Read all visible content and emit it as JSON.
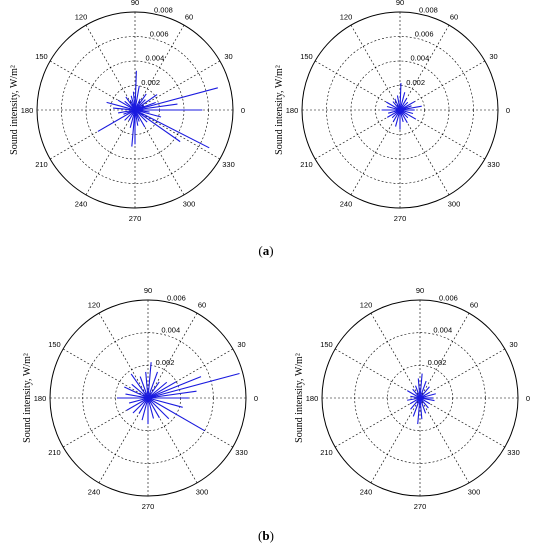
{
  "figure": {
    "captions": [
      "a",
      "b"
    ]
  },
  "chart_data": [
    {
      "type": "polar",
      "panel": "a",
      "position": "left",
      "ylabel": "Sound intensity, W/m²",
      "r_ticks": [
        "0.002",
        "0.004",
        "0.006",
        "0.008"
      ],
      "rlim": [
        0,
        0.008
      ],
      "angle_ticks": [
        "0",
        "30",
        "60",
        "90",
        "120",
        "150",
        "180",
        "210",
        "240",
        "270",
        "300",
        "330"
      ],
      "grid": true,
      "series": [
        {
          "color": "#1a1adf",
          "theta_deg": [
            0,
            8,
            15,
            20,
            25,
            35,
            45,
            55,
            65,
            80,
            88,
            95,
            105,
            115,
            125,
            140,
            150,
            165,
            175,
            190,
            200,
            210,
            225,
            240,
            255,
            265,
            270,
            280,
            290,
            300,
            315,
            325,
            333,
            345,
            352
          ],
          "r": [
            0.0055,
            0.0035,
            0.007,
            0.0018,
            0.0008,
            0.0022,
            0.0012,
            0.0016,
            0.001,
            0.002,
            0.0032,
            0.0015,
            0.0012,
            0.0009,
            0.0013,
            0.0011,
            0.0016,
            0.0024,
            0.0018,
            0.0014,
            0.001,
            0.0035,
            0.0012,
            0.001,
            0.0015,
            0.003,
            0.0028,
            0.0013,
            0.001,
            0.0016,
            0.0014,
            0.0045,
            0.0068,
            0.0022,
            0.0012
          ]
        }
      ]
    },
    {
      "type": "polar",
      "panel": "a",
      "position": "right",
      "ylabel": "Sound intensity, W/m²",
      "r_ticks": [
        "0.002",
        "0.004",
        "0.006",
        "0.008"
      ],
      "rlim": [
        0,
        0.008
      ],
      "angle_ticks": [
        "0",
        "30",
        "60",
        "90",
        "120",
        "150",
        "180",
        "210",
        "240",
        "270",
        "300",
        "330"
      ],
      "grid": true,
      "series": [
        {
          "color": "#1a1adf",
          "theta_deg": [
            0,
            10,
            20,
            30,
            45,
            60,
            75,
            88,
            100,
            115,
            130,
            150,
            165,
            180,
            195,
            210,
            225,
            240,
            255,
            270,
            285,
            300,
            315,
            330,
            345
          ],
          "r": [
            0.0012,
            0.0018,
            0.001,
            0.0014,
            0.0009,
            0.0011,
            0.0015,
            0.0022,
            0.0012,
            0.001,
            0.0009,
            0.0013,
            0.0011,
            0.0015,
            0.001,
            0.0012,
            0.0009,
            0.0011,
            0.0014,
            0.0016,
            0.001,
            0.0012,
            0.0009,
            0.0015,
            0.0011
          ]
        }
      ]
    },
    {
      "type": "polar",
      "panel": "b",
      "position": "left",
      "ylabel": "Sound intensity, W/m²",
      "r_ticks": [
        "0.002",
        "0.004",
        "0.006"
      ],
      "rlim": [
        0,
        0.006
      ],
      "angle_ticks": [
        "0",
        "30",
        "60",
        "90",
        "120",
        "150",
        "180",
        "210",
        "240",
        "270",
        "300",
        "330"
      ],
      "grid": true,
      "series": [
        {
          "color": "#1a1adf",
          "theta_deg": [
            0,
            8,
            15,
            22,
            30,
            40,
            55,
            70,
            85,
            95,
            110,
            125,
            140,
            155,
            170,
            180,
            195,
            210,
            225,
            240,
            255,
            270,
            285,
            300,
            315,
            330,
            345
          ],
          "r": [
            0.0025,
            0.003,
            0.0058,
            0.0035,
            0.002,
            0.0015,
            0.0012,
            0.0017,
            0.0022,
            0.0016,
            0.0014,
            0.0018,
            0.0013,
            0.0016,
            0.0014,
            0.0019,
            0.0012,
            0.0015,
            0.0013,
            0.0011,
            0.0014,
            0.0016,
            0.0013,
            0.0014,
            0.0018,
            0.004,
            0.0022
          ]
        }
      ]
    },
    {
      "type": "polar",
      "panel": "b",
      "position": "right",
      "ylabel": "Sound intensity, W/m²",
      "r_ticks": [
        "0.002",
        "0.004",
        "0.006"
      ],
      "rlim": [
        0,
        0.006
      ],
      "angle_ticks": [
        "0",
        "30",
        "60",
        "90",
        "120",
        "150",
        "180",
        "210",
        "240",
        "270",
        "300",
        "330"
      ],
      "grid": true,
      "series": [
        {
          "color": "#1a1adf",
          "theta_deg": [
            0,
            15,
            30,
            50,
            70,
            85,
            95,
            110,
            130,
            150,
            170,
            190,
            210,
            230,
            250,
            265,
            275,
            290,
            310,
            330,
            350
          ],
          "r": [
            0.0008,
            0.001,
            0.0007,
            0.0009,
            0.0011,
            0.0015,
            0.0012,
            0.0008,
            0.0007,
            0.0009,
            0.0006,
            0.0008,
            0.0007,
            0.0009,
            0.0012,
            0.0016,
            0.0013,
            0.001,
            0.0008,
            0.0007,
            0.0009
          ]
        }
      ]
    }
  ]
}
